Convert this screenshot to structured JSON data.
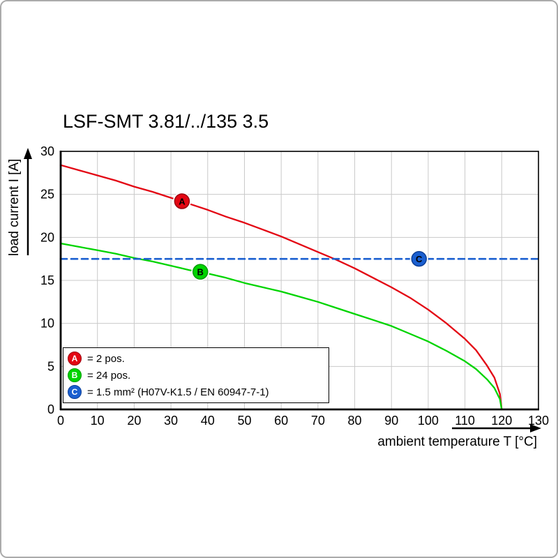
{
  "chart_data": {
    "type": "line",
    "title": "LSF-SMT 3.81/../135 3.5",
    "xlabel": "ambient temperature T [°C]",
    "ylabel": "load current I [A]",
    "xlim": [
      0,
      130
    ],
    "ylim": [
      0,
      30
    ],
    "xticks": [
      0,
      10,
      20,
      30,
      40,
      50,
      60,
      70,
      80,
      90,
      100,
      110,
      120,
      130
    ],
    "yticks": [
      0,
      5,
      10,
      15,
      20,
      25,
      30
    ],
    "grid": true,
    "grid_color": "#c9c9c9",
    "axis_color": "#000000",
    "series": [
      {
        "id": "A",
        "legend_label": "= 2 pos.",
        "color": "#e30613",
        "edge": "#9c0410",
        "style": "solid",
        "points": [
          [
            0,
            28.4
          ],
          [
            5,
            27.8
          ],
          [
            10,
            27.2
          ],
          [
            15,
            26.6
          ],
          [
            20,
            25.9
          ],
          [
            25,
            25.3
          ],
          [
            30,
            24.6
          ],
          [
            35,
            23.9
          ],
          [
            40,
            23.2
          ],
          [
            45,
            22.4
          ],
          [
            50,
            21.7
          ],
          [
            55,
            20.9
          ],
          [
            60,
            20.1
          ],
          [
            65,
            19.2
          ],
          [
            70,
            18.3
          ],
          [
            75,
            17.4
          ],
          [
            80,
            16.4
          ],
          [
            85,
            15.3
          ],
          [
            90,
            14.2
          ],
          [
            95,
            13.0
          ],
          [
            100,
            11.6
          ],
          [
            105,
            10.0
          ],
          [
            110,
            8.2
          ],
          [
            113,
            6.9
          ],
          [
            116,
            5.1
          ],
          [
            118,
            3.7
          ],
          [
            119.5,
            1.8
          ],
          [
            120,
            0
          ]
        ]
      },
      {
        "id": "B",
        "legend_label": "= 24 pos.",
        "color": "#00d400",
        "edge": "#009a00",
        "style": "solid",
        "points": [
          [
            0,
            19.3
          ],
          [
            5,
            18.9
          ],
          [
            10,
            18.5
          ],
          [
            15,
            18.1
          ],
          [
            20,
            17.6
          ],
          [
            25,
            17.2
          ],
          [
            30,
            16.7
          ],
          [
            35,
            16.2
          ],
          [
            40,
            15.8
          ],
          [
            45,
            15.3
          ],
          [
            50,
            14.7
          ],
          [
            55,
            14.2
          ],
          [
            60,
            13.7
          ],
          [
            65,
            13.1
          ],
          [
            70,
            12.5
          ],
          [
            75,
            11.8
          ],
          [
            80,
            11.1
          ],
          [
            85,
            10.4
          ],
          [
            90,
            9.7
          ],
          [
            95,
            8.8
          ],
          [
            100,
            7.9
          ],
          [
            105,
            6.8
          ],
          [
            110,
            5.6
          ],
          [
            113,
            4.7
          ],
          [
            116,
            3.5
          ],
          [
            118,
            2.5
          ],
          [
            119.5,
            1.2
          ],
          [
            120,
            0
          ]
        ]
      },
      {
        "id": "C",
        "legend_label": "= 1.5 mm² (H07V-K1.5 / EN 60947-7-1)",
        "color": "#1a5fd0",
        "edge": "#0d3f96",
        "style": "dashed",
        "points": [
          [
            0,
            17.5
          ],
          [
            130,
            17.5
          ]
        ]
      }
    ],
    "markers": [
      {
        "series": "A",
        "letter": "A",
        "x": 33,
        "y": 24.2
      },
      {
        "series": "B",
        "letter": "B",
        "x": 38,
        "y": 16.0
      },
      {
        "series": "C",
        "letter": "C",
        "x": 97.5,
        "y": 17.5
      }
    ]
  }
}
